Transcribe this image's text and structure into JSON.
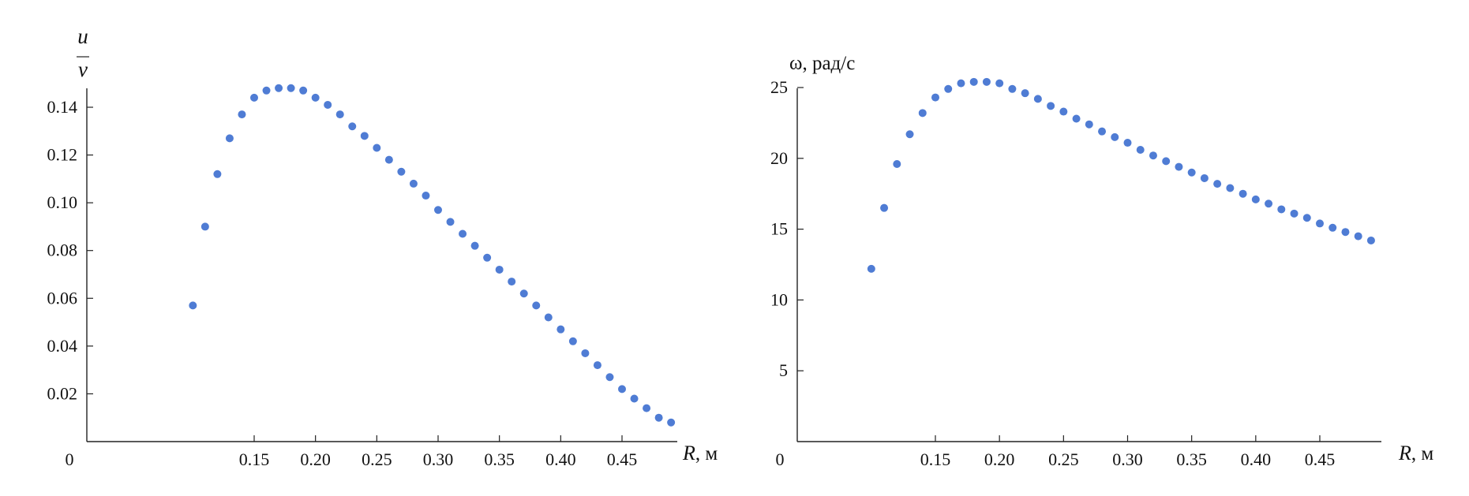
{
  "chart_data": [
    {
      "type": "scatter",
      "title": "",
      "ylabel_num": "u",
      "ylabel_den": "v",
      "xlabel_var": "R",
      "xlabel_unit": ", м",
      "origin_label": "0",
      "xlim": [
        0.09,
        0.495
      ],
      "ylim": [
        0,
        0.155
      ],
      "xticks": [
        0.15,
        0.2,
        0.25,
        0.3,
        0.35,
        0.4,
        0.45
      ],
      "xtick_labels": [
        "0.15",
        "0.20",
        "0.25",
        "0.30",
        "0.35",
        "0.40",
        "0.45"
      ],
      "yticks": [
        0.02,
        0.04,
        0.06,
        0.08,
        0.1,
        0.12,
        0.14
      ],
      "ytick_labels": [
        "0.02",
        "0.04",
        "0.06",
        "0.08",
        "0.10",
        "0.12",
        "0.14"
      ],
      "color": "#4F7CD4",
      "grid": false,
      "x": [
        0.1,
        0.11,
        0.12,
        0.13,
        0.14,
        0.15,
        0.16,
        0.17,
        0.18,
        0.19,
        0.2,
        0.21,
        0.22,
        0.23,
        0.24,
        0.25,
        0.26,
        0.27,
        0.28,
        0.29,
        0.3,
        0.31,
        0.32,
        0.33,
        0.34,
        0.35,
        0.36,
        0.37,
        0.38,
        0.39,
        0.4,
        0.41,
        0.42,
        0.43,
        0.44,
        0.45,
        0.46,
        0.47,
        0.48,
        0.49
      ],
      "y": [
        0.057,
        0.09,
        0.112,
        0.127,
        0.137,
        0.144,
        0.147,
        0.148,
        0.148,
        0.147,
        0.144,
        0.141,
        0.137,
        0.132,
        0.128,
        0.123,
        0.118,
        0.113,
        0.108,
        0.103,
        0.097,
        0.092,
        0.087,
        0.082,
        0.077,
        0.072,
        0.067,
        0.062,
        0.057,
        0.052,
        0.047,
        0.042,
        0.037,
        0.032,
        0.027,
        0.022,
        0.018,
        0.014,
        0.01,
        0.008
      ]
    },
    {
      "type": "scatter",
      "title": "",
      "ylabel": "ω, рад/с",
      "xlabel_var": "R",
      "xlabel_unit": ", м",
      "origin_label": "0",
      "xlim": [
        0.09,
        0.495
      ],
      "ylim": [
        0,
        26.5
      ],
      "xticks": [
        0.15,
        0.2,
        0.25,
        0.3,
        0.35,
        0.4,
        0.45
      ],
      "xtick_labels": [
        "0.15",
        "0.20",
        "0.25",
        "0.30",
        "0.35",
        "0.40",
        "0.45"
      ],
      "yticks": [
        5,
        10,
        15,
        20,
        25
      ],
      "ytick_labels": [
        "5",
        "10",
        "15",
        "20",
        "25"
      ],
      "color": "#4F7CD4",
      "grid": false,
      "x": [
        0.1,
        0.11,
        0.12,
        0.13,
        0.14,
        0.15,
        0.16,
        0.17,
        0.18,
        0.19,
        0.2,
        0.21,
        0.22,
        0.23,
        0.24,
        0.25,
        0.26,
        0.27,
        0.28,
        0.29,
        0.3,
        0.31,
        0.32,
        0.33,
        0.34,
        0.35,
        0.36,
        0.37,
        0.38,
        0.39,
        0.4,
        0.41,
        0.42,
        0.43,
        0.44,
        0.45,
        0.46,
        0.47,
        0.48,
        0.49
      ],
      "y": [
        12.2,
        16.5,
        19.6,
        21.7,
        23.2,
        24.3,
        24.9,
        25.3,
        25.4,
        25.4,
        25.3,
        24.9,
        24.6,
        24.2,
        23.7,
        23.3,
        22.8,
        22.4,
        21.9,
        21.5,
        21.1,
        20.6,
        20.2,
        19.8,
        19.4,
        19.0,
        18.6,
        18.2,
        17.9,
        17.5,
        17.1,
        16.8,
        16.4,
        16.1,
        15.8,
        15.4,
        15.1,
        14.8,
        14.5,
        14.2
      ]
    }
  ]
}
